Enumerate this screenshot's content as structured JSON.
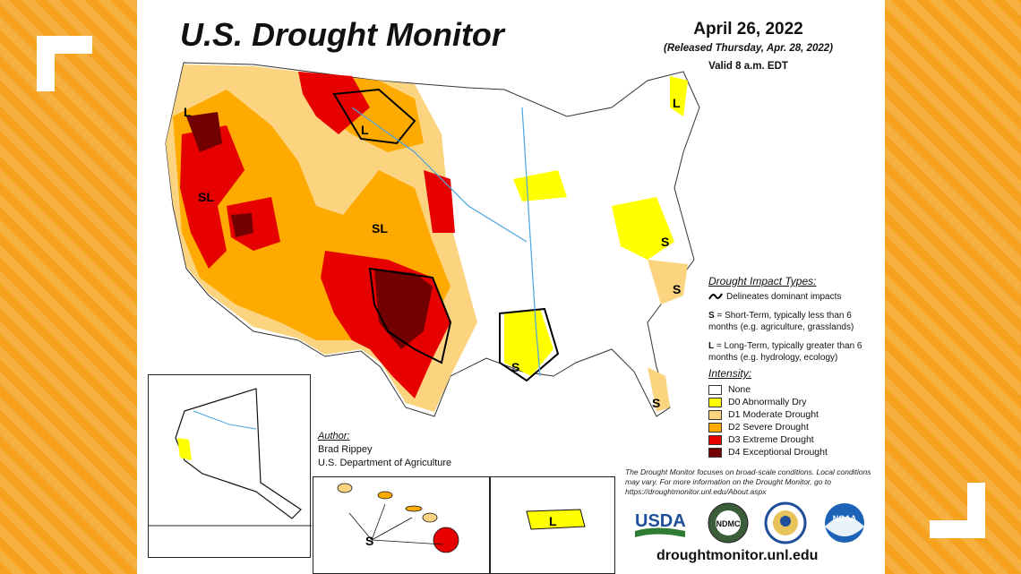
{
  "header": {
    "title": "U.S. Drought Monitor",
    "date": "April 26, 2022",
    "released": "(Released Thursday, Apr. 28, 2022)",
    "valid": "Valid 8 a.m. EDT"
  },
  "map_labels": {
    "l_northwest": "L",
    "l_montana": "L",
    "l_maine": "L",
    "sl_nevada": "SL",
    "sl_colorado": "SL",
    "s_louisiana": "S",
    "s_virginia": "S",
    "s_carolina": "S",
    "s_florida": "S",
    "s_hawaii": "S",
    "l_puertorico": "L"
  },
  "author": {
    "heading": "Author:",
    "name": "Brad Rippey",
    "org": "U.S. Department of Agriculture"
  },
  "impact_types": {
    "heading": "Drought Impact Types:",
    "delineates": "Delineates dominant impacts",
    "s_key": "S",
    "s_text": " = Short-Term, typically less than 6 months (e.g. agriculture, grasslands)",
    "l_key": "L",
    "l_text": " = Long-Term, typically greater than 6 months (e.g. hydrology, ecology)"
  },
  "intensity": {
    "heading": "Intensity:",
    "items": [
      {
        "label": "None",
        "color": "#ffffff"
      },
      {
        "label": "D0 Abnormally Dry",
        "color": "#ffff00"
      },
      {
        "label": "D1 Moderate Drought",
        "color": "#fcd37f"
      },
      {
        "label": "D2 Severe Drought",
        "color": "#ffaa00"
      },
      {
        "label": "D3 Extreme Drought",
        "color": "#e60000"
      },
      {
        "label": "D4 Exceptional Drought",
        "color": "#730000"
      }
    ]
  },
  "note": "The Drought Monitor focuses on broad-scale conditions. Local conditions may vary. For more information on the Drought Monitor, go to https://droughtmonitor.unl.edu/About.aspx",
  "logos": {
    "usda": "USDA",
    "ndmc": "NDMC",
    "noaa": "NOAA"
  },
  "website": "droughtmonitor.unl.edu",
  "colors": {
    "frame_orange": "#f4a020",
    "d0": "#ffff00",
    "d1": "#fcd37f",
    "d2": "#ffaa00",
    "d3": "#e60000",
    "d4": "#730000"
  }
}
